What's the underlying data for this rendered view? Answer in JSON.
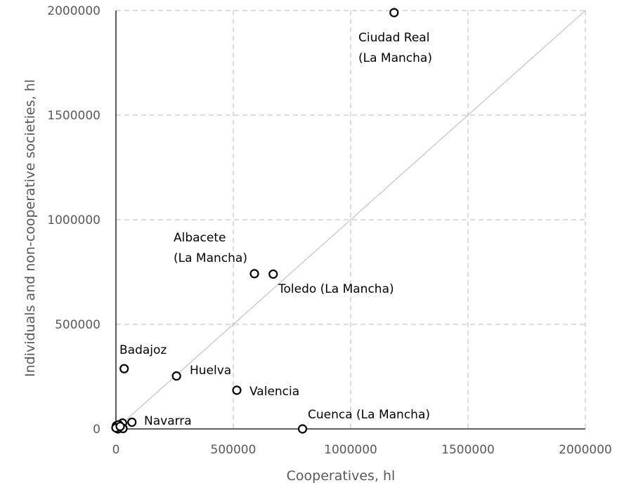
{
  "chart_data": {
    "type": "scatter",
    "xlabel": "Cooperatives, hl",
    "ylabel": "Individuals and non-cooperative societies, hl",
    "xlim": [
      0,
      2000000
    ],
    "ylim": [
      0,
      2000000
    ],
    "x_ticks": [
      "0",
      "500000",
      "1000000",
      "1500000",
      "2000000"
    ],
    "y_ticks": [
      "0",
      "500000",
      "1000000",
      "1500000",
      "2000000"
    ],
    "grid": true,
    "grid_style": "dashed",
    "reference_line": {
      "type": "identity",
      "from": [
        0,
        0
      ],
      "to": [
        2000000,
        2000000
      ]
    },
    "points": [
      {
        "x": 1185000,
        "y": 1990000,
        "label": "Ciudad Real"
      },
      {
        "x": 590000,
        "y": 742000,
        "label": "Albacete"
      },
      {
        "x": 670000,
        "y": 740000,
        "label": "Toledo"
      },
      {
        "x": 795000,
        "y": 0,
        "label": "Cuenca"
      },
      {
        "x": 35000,
        "y": 288000,
        "label": "Badajoz"
      },
      {
        "x": 258000,
        "y": 253000,
        "label": "Huelva"
      },
      {
        "x": 515000,
        "y": 185000,
        "label": "Valencia"
      },
      {
        "x": 68000,
        "y": 32000,
        "label": "Navarra"
      },
      {
        "x": 28000,
        "y": 28000,
        "label": ""
      },
      {
        "x": 2000,
        "y": 15000,
        "label": ""
      },
      {
        "x": 12000,
        "y": 20000,
        "label": ""
      },
      {
        "x": 5000,
        "y": 3000,
        "label": ""
      },
      {
        "x": 15000,
        "y": 5000,
        "label": ""
      },
      {
        "x": 22000,
        "y": 8000,
        "label": ""
      },
      {
        "x": 8000,
        "y": 0,
        "label": ""
      },
      {
        "x": 30000,
        "y": 2000,
        "label": ""
      },
      {
        "x": 0,
        "y": 5000,
        "label": ""
      },
      {
        "x": 18000,
        "y": 12000,
        "label": ""
      }
    ],
    "annotations": [
      {
        "key": "ciudad_real",
        "lines": [
          "Ciudad Real",
          "(La Mancha)"
        ]
      },
      {
        "key": "albacete",
        "lines": [
          "Albacete",
          "(La Mancha)"
        ]
      },
      {
        "key": "toledo",
        "lines": [
          "Toledo  (La Mancha)"
        ]
      },
      {
        "key": "cuenca",
        "lines": [
          "Cuenca  (La Mancha)"
        ]
      },
      {
        "key": "badajoz",
        "lines": [
          "Badajoz"
        ]
      },
      {
        "key": "huelva",
        "lines": [
          "Huelva"
        ]
      },
      {
        "key": "valencia",
        "lines": [
          "Valencia"
        ]
      },
      {
        "key": "navarra",
        "lines": [
          "Navarra"
        ]
      }
    ]
  }
}
